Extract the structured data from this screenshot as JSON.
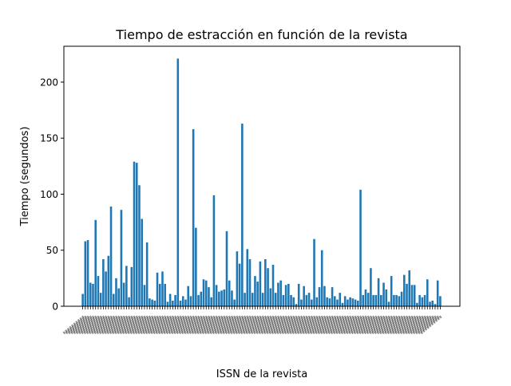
{
  "chart_data": {
    "type": "bar",
    "title": "Tiempo de estracción en función de la revista",
    "xlabel": "ISSN de la revista",
    "ylabel": "Tiempo (segundos)",
    "ylim": [
      0,
      232
    ],
    "yticks": [
      0,
      50,
      100,
      150,
      200
    ],
    "grid": false,
    "bar_color": "#1f77b4",
    "x_tick_labels_legible": false,
    "values": [
      11,
      58,
      59,
      21,
      20,
      77,
      27,
      12,
      42,
      31,
      45,
      89,
      11,
      25,
      16,
      86,
      21,
      36,
      8,
      35,
      129,
      128,
      108,
      78,
      19,
      57,
      7,
      6,
      5,
      30,
      20,
      31,
      20,
      4,
      11,
      5,
      10,
      221,
      5,
      9,
      6,
      18,
      9,
      158,
      70,
      10,
      13,
      24,
      23,
      17,
      8,
      99,
      19,
      13,
      14,
      15,
      67,
      23,
      14,
      6,
      49,
      38,
      163,
      12,
      51,
      42,
      12,
      27,
      22,
      40,
      12,
      42,
      34,
      16,
      37,
      12,
      21,
      23,
      10,
      19,
      20,
      10,
      8,
      2,
      20,
      6,
      18,
      10,
      12,
      6,
      60,
      8,
      17,
      50,
      18,
      8,
      7,
      17,
      9,
      6,
      12,
      3,
      9,
      6,
      8,
      7,
      6,
      5,
      104,
      10,
      15,
      12,
      34,
      10,
      10,
      25,
      10,
      21,
      15,
      4,
      27,
      10,
      10,
      9,
      13,
      28,
      20,
      32,
      19,
      19,
      3,
      10,
      8,
      10,
      24,
      4,
      5,
      2,
      23,
      9
    ]
  }
}
